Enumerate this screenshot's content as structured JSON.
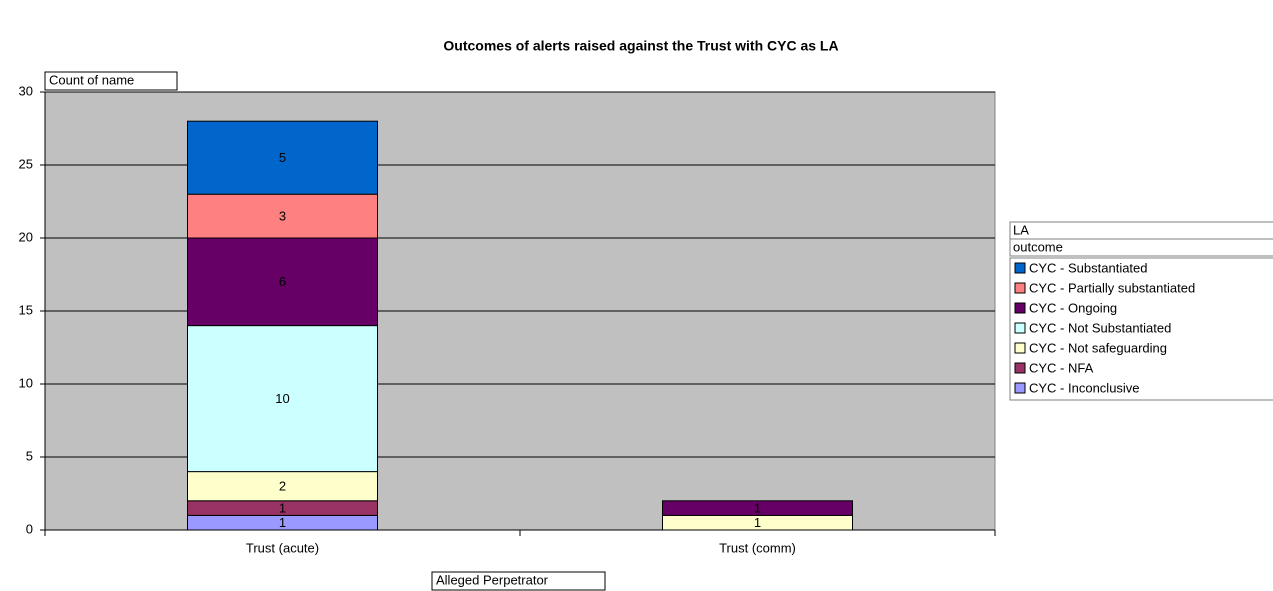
{
  "chart_data": {
    "type": "stacked_bar",
    "title": "Outcomes of alerts raised against the Trust with CYC as LA",
    "ylabel": "Count of name",
    "xlabel": "Alleged Perpetrator",
    "legend_fields": [
      "LA",
      "outcome"
    ],
    "categories": [
      "Trust (acute)",
      "Trust (comm)"
    ],
    "series": [
      {
        "name": "CYC - Inconclusive",
        "color": "#9999ff",
        "values": [
          1,
          null
        ]
      },
      {
        "name": "CYC - NFA",
        "color": "#993366",
        "values": [
          1,
          null
        ]
      },
      {
        "name": "CYC - Not safeguarding",
        "color": "#ffffcc",
        "values": [
          2,
          1
        ]
      },
      {
        "name": "CYC - Not Substantiated",
        "color": "#ccffff",
        "values": [
          10,
          null
        ]
      },
      {
        "name": "CYC - Ongoing",
        "color": "#660066",
        "values": [
          6,
          1
        ]
      },
      {
        "name": "CYC - Partially substantiated",
        "color": "#ff8080",
        "values": [
          3,
          null
        ]
      },
      {
        "name": "CYC - Substantiated",
        "color": "#0066cc",
        "values": [
          5,
          null
        ]
      }
    ],
    "ylim": [
      0,
      30
    ],
    "yticks": [
      0,
      5,
      10,
      15,
      20,
      25,
      30
    ],
    "grid": true,
    "legend": "right"
  }
}
